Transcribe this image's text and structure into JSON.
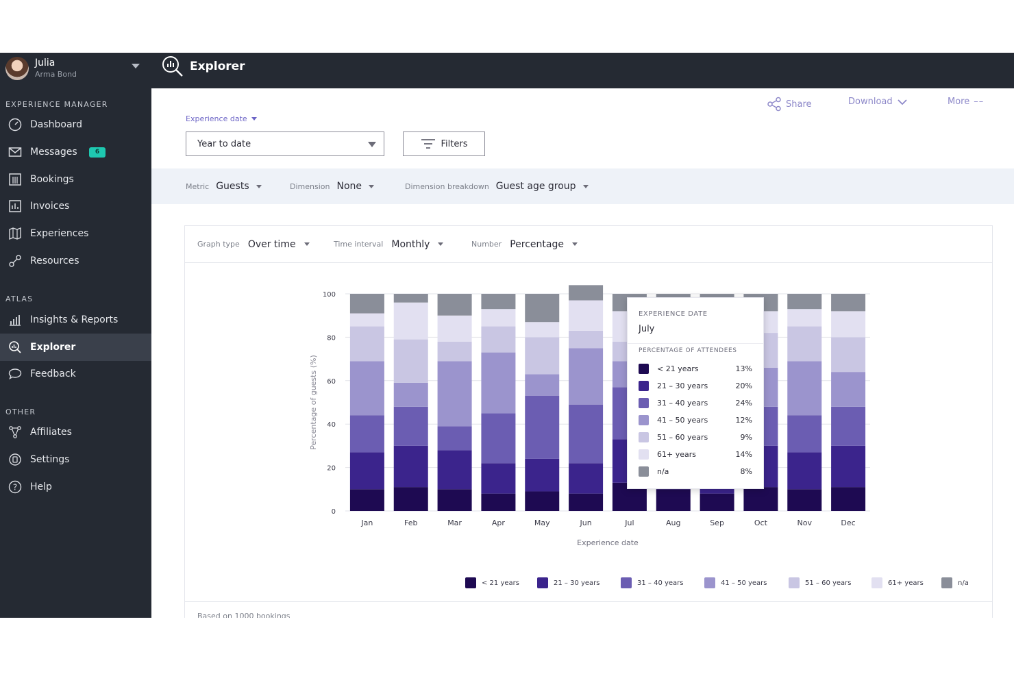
{
  "user": {
    "name": "Julia",
    "subtitle": "Arma Bond"
  },
  "sidebar": {
    "sections": [
      {
        "title": "EXPERIENCE MANAGER",
        "items": [
          {
            "label": "Dashboard",
            "icon": "dashboard-icon"
          },
          {
            "label": "Messages",
            "icon": "envelope-icon",
            "badge": "6"
          },
          {
            "label": "Bookings",
            "icon": "calendar-icon"
          },
          {
            "label": "Invoices",
            "icon": "invoice-icon"
          },
          {
            "label": "Experiences",
            "icon": "map-icon"
          },
          {
            "label": "Resources",
            "icon": "link-icon"
          }
        ]
      },
      {
        "title": "ATLAS",
        "items": [
          {
            "label": "Insights & Reports",
            "icon": "bar-chart-icon"
          },
          {
            "label": "Explorer",
            "icon": "explorer-icon",
            "active": true
          },
          {
            "label": "Feedback",
            "icon": "speech-bubble-icon"
          }
        ]
      },
      {
        "title": "OTHER",
        "items": [
          {
            "label": "Affiliates",
            "icon": "affiliates-icon"
          },
          {
            "label": "Settings",
            "icon": "settings-icon"
          },
          {
            "label": "Help",
            "icon": "help-icon"
          }
        ]
      }
    ]
  },
  "header": {
    "title": "Explorer"
  },
  "actions": {
    "share": "Share",
    "download": "Download",
    "more": "More"
  },
  "date_filter": {
    "label": "Experience date",
    "value": "Year to date",
    "filters_button": "Filters"
  },
  "filterbar": [
    {
      "label": "Metric",
      "value": "Guests"
    },
    {
      "label": "Dimension",
      "value": "None"
    },
    {
      "label": "Dimension breakdown",
      "value": "Guest age group"
    }
  ],
  "card_controls": [
    {
      "label": "Graph type",
      "value": "Over time"
    },
    {
      "label": "Time interval",
      "value": "Monthly"
    },
    {
      "label": "Number",
      "value": "Percentage"
    }
  ],
  "footer_note": "Based on 1000 bookings",
  "colors": [
    "#1e0a52",
    "#3b248c",
    "#6b5db2",
    "#9b94cd",
    "#c9c6e3",
    "#e2e0f1",
    "#8a8e99"
  ],
  "tooltip": {
    "header": "EXPERIENCE DATE",
    "month": "July",
    "subheader": "PERCENTAGE OF ATTENDEES",
    "rows": [
      {
        "label": "< 21 years",
        "pct": "13%"
      },
      {
        "label": "21 – 30 years",
        "pct": "20%"
      },
      {
        "label": "31 – 40 years",
        "pct": "24%"
      },
      {
        "label": "41 – 50 years",
        "pct": "12%"
      },
      {
        "label": "51 – 60 years",
        "pct": "9%"
      },
      {
        "label": "61+ years",
        "pct": "14%"
      },
      {
        "label": "n/a",
        "pct": "8%"
      }
    ]
  },
  "chart_data": {
    "type": "bar",
    "stacked": true,
    "categories": [
      "Jan",
      "Feb",
      "Mar",
      "Apr",
      "May",
      "Jun",
      "Jul",
      "Aug",
      "Sep",
      "Oct",
      "Nov",
      "Dec"
    ],
    "series": [
      {
        "name": "< 21 years",
        "values": [
          10,
          11,
          10,
          8,
          9,
          8,
          13,
          10,
          8,
          11,
          10,
          11
        ]
      },
      {
        "name": "21 – 30 years",
        "values": [
          17,
          19,
          18,
          14,
          15,
          14,
          20,
          16,
          15,
          19,
          17,
          19
        ]
      },
      {
        "name": "31 – 40 years",
        "values": [
          17,
          18,
          11,
          23,
          29,
          27,
          24,
          28,
          25,
          18,
          17,
          18
        ]
      },
      {
        "name": "41 – 50 years",
        "values": [
          25,
          11,
          30,
          28,
          10,
          26,
          12,
          15,
          18,
          18,
          25,
          16
        ]
      },
      {
        "name": "51 – 60 years",
        "values": [
          16,
          20,
          9,
          12,
          17,
          8,
          9,
          10,
          9,
          16,
          16,
          16
        ]
      },
      {
        "name": "61+ years",
        "values": [
          6,
          17,
          12,
          8,
          7,
          14,
          14,
          13,
          17,
          10,
          8,
          12
        ]
      },
      {
        "name": "n/a",
        "values": [
          9,
          4,
          10,
          7,
          13,
          7,
          8,
          8,
          8,
          8,
          7,
          8
        ]
      }
    ],
    "xlabel": "Experience date",
    "ylabel": "Percentage of guests (%)",
    "ylim": [
      0,
      100
    ],
    "yticks": [
      0,
      20,
      40,
      60,
      80,
      100
    ],
    "grid": true,
    "legend_position": "bottom"
  }
}
